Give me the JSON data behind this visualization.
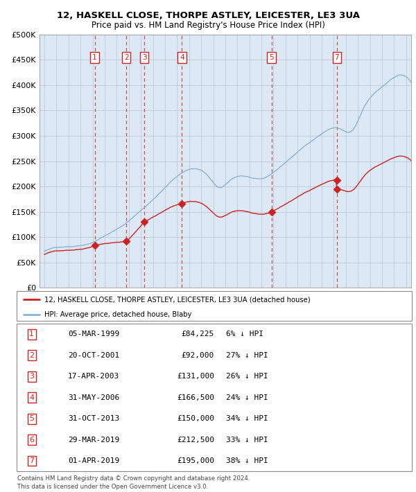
{
  "title1": "12, HASKELL CLOSE, THORPE ASTLEY, LEICESTER, LE3 3UA",
  "title2": "Price paid vs. HM Land Registry's House Price Index (HPI)",
  "hpi_color": "#8ab4d8",
  "price_color": "#cc2222",
  "plot_bg_color": "#dce9f5",
  "legend_line1": "12, HASKELL CLOSE, THORPE ASTLEY, LEICESTER, LE3 3UA (detached house)",
  "legend_line2": "HPI: Average price, detached house, Blaby",
  "footer1": "Contains HM Land Registry data © Crown copyright and database right 2024.",
  "footer2": "This data is licensed under the Open Government Licence v3.0.",
  "transactions": [
    {
      "id": 1,
      "year": 1999.17,
      "price": 84225
    },
    {
      "id": 2,
      "year": 2001.8,
      "price": 92000
    },
    {
      "id": 3,
      "year": 2003.29,
      "price": 131000
    },
    {
      "id": 4,
      "year": 2006.41,
      "price": 166500
    },
    {
      "id": 5,
      "year": 2013.83,
      "price": 150000
    },
    {
      "id": 6,
      "year": 2019.24,
      "price": 212500
    },
    {
      "id": 7,
      "year": 2019.25,
      "price": 195000
    }
  ],
  "shown_vlines": [
    1,
    2,
    3,
    4,
    5,
    7
  ],
  "shown_labels": [
    1,
    2,
    3,
    4,
    5,
    7
  ],
  "table_rows": [
    {
      "id": 1,
      "date": "05-MAR-1999",
      "price": "£84,225",
      "pct": "6% ↓ HPI"
    },
    {
      "id": 2,
      "date": "20-OCT-2001",
      "price": "£92,000",
      "pct": "27% ↓ HPI"
    },
    {
      "id": 3,
      "date": "17-APR-2003",
      "price": "£131,000",
      "pct": "26% ↓ HPI"
    },
    {
      "id": 4,
      "date": "31-MAY-2006",
      "price": "£166,500",
      "pct": "24% ↓ HPI"
    },
    {
      "id": 5,
      "date": "31-OCT-2013",
      "price": "£150,000",
      "pct": "34% ↓ HPI"
    },
    {
      "id": 6,
      "date": "29-MAR-2019",
      "price": "£212,500",
      "pct": "33% ↓ HPI"
    },
    {
      "id": 7,
      "date": "01-APR-2019",
      "price": "£195,000",
      "pct": "38% ↓ HPI"
    }
  ],
  "ylim": [
    0,
    500000
  ],
  "yticks": [
    0,
    50000,
    100000,
    150000,
    200000,
    250000,
    300000,
    350000,
    400000,
    450000,
    500000
  ],
  "xlim_start": 1994.6,
  "xlim_end": 2025.4
}
